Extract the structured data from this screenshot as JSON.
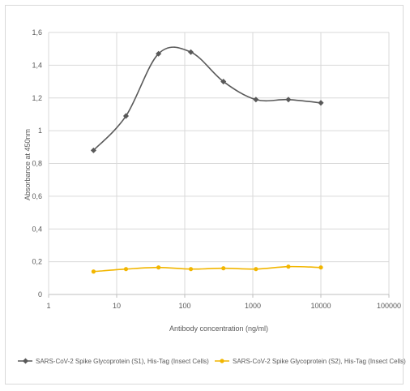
{
  "chart_data": {
    "type": "line",
    "title": "",
    "xlabel": "Antibody concentration (ng/ml)",
    "ylabel": "Absorbance at 450nm",
    "x_scale": "log",
    "xlim": [
      1,
      100000
    ],
    "ylim": [
      0,
      1.6
    ],
    "x_ticks": [
      "1",
      "10",
      "100",
      "1000",
      "10000",
      "100000"
    ],
    "y_ticks": [
      "0",
      "0,2",
      "0,4",
      "0,6",
      "0,8",
      "1",
      "1,2",
      "1,4",
      "1,6"
    ],
    "grid": true,
    "legend_position": "bottom",
    "series": [
      {
        "name": "SARS-CoV-2 Spike Glycoprotein (S1), His-Tag (Insect Cells)",
        "color": "#595959",
        "x": [
          4.57,
          13.7,
          41.2,
          123,
          370,
          1111,
          3333,
          10000
        ],
        "values": [
          0.88,
          1.09,
          1.47,
          1.48,
          1.3,
          1.19,
          1.19,
          1.17
        ]
      },
      {
        "name": "SARS-CoV-2 Spike Glycoprotein (S2), His-Tag (Insect Cells)",
        "color": "#f2b600",
        "x": [
          4.57,
          13.7,
          41.2,
          123,
          370,
          1111,
          3333,
          10000
        ],
        "values": [
          0.14,
          0.155,
          0.165,
          0.155,
          0.16,
          0.155,
          0.17,
          0.165
        ]
      }
    ]
  }
}
